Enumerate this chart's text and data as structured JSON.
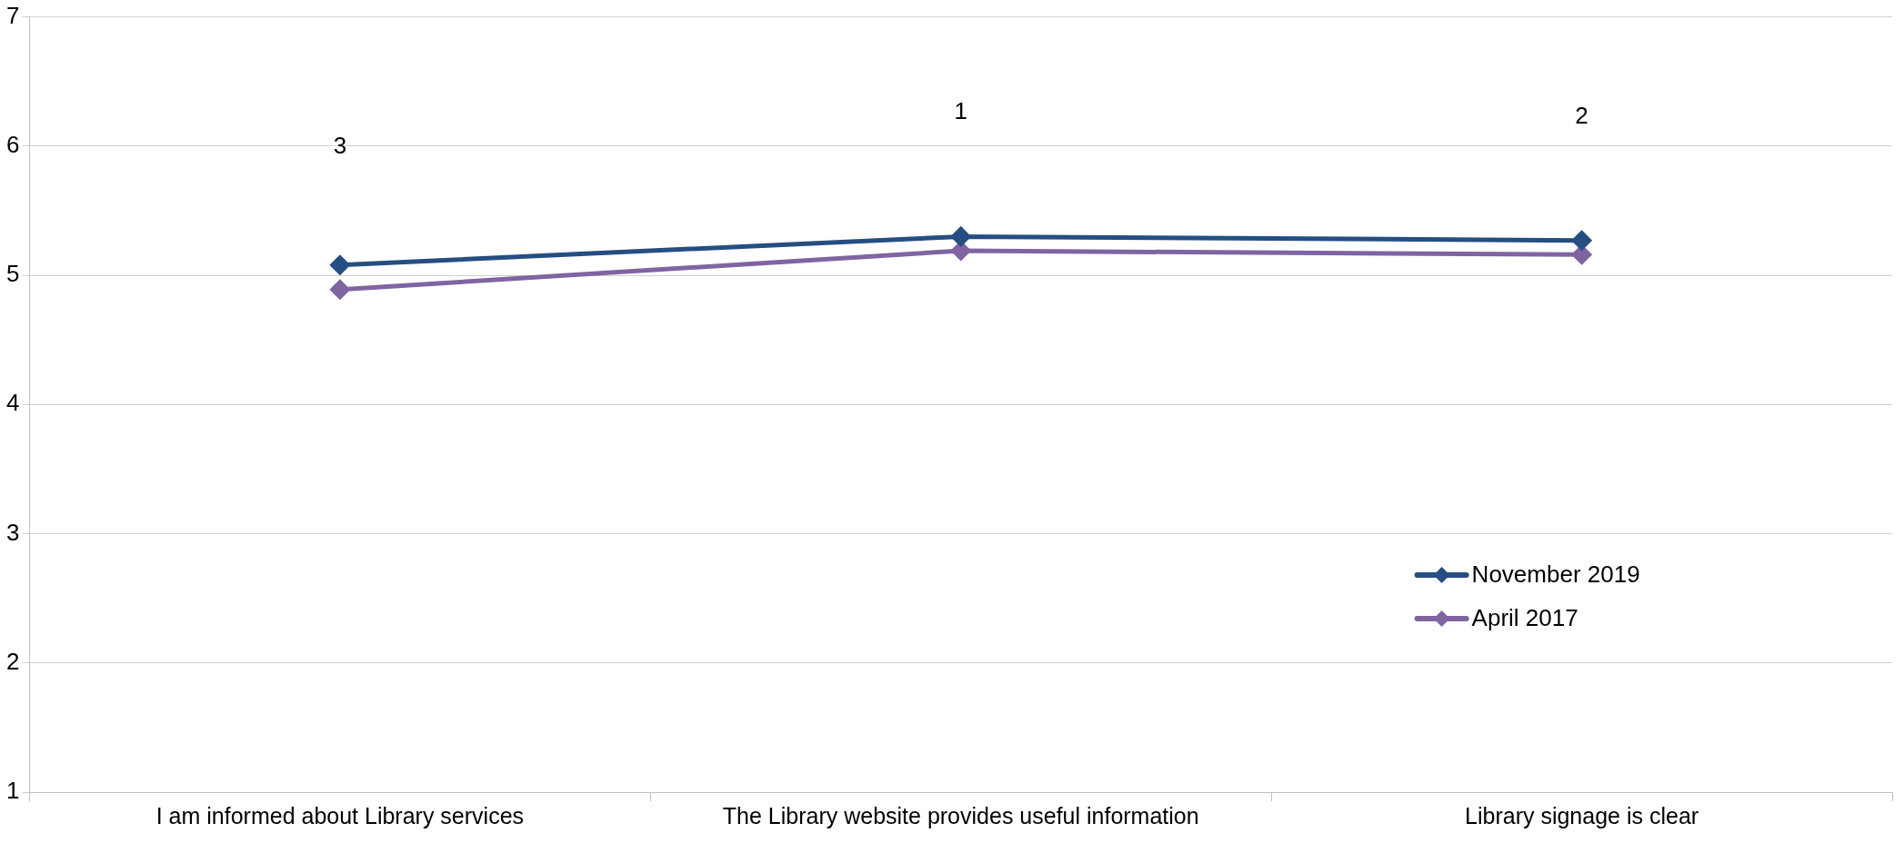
{
  "chart_data": {
    "type": "line",
    "categories": [
      "I am informed about Library services",
      "The Library website provides useful information",
      "Library signage is clear"
    ],
    "series": [
      {
        "name": "November 2019",
        "color": "#254e82",
        "values": [
          5.08,
          5.3,
          5.27
        ]
      },
      {
        "name": "April 2017",
        "color": "#8064a2",
        "values": [
          4.89,
          5.19,
          5.16
        ]
      }
    ],
    "ylim": [
      1,
      7
    ],
    "yticks": [
      1,
      2,
      3,
      4,
      5,
      6,
      7
    ],
    "grid": "y",
    "legend": "bottom right",
    "marker": "diamond",
    "line_style": "solid",
    "annotations": [
      "3",
      "1",
      "2"
    ]
  }
}
